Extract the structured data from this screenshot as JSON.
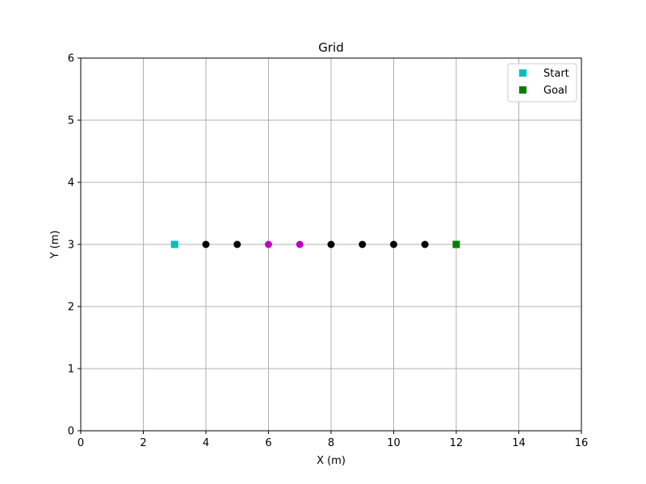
{
  "chart_data": {
    "type": "scatter",
    "title": "Grid",
    "xlabel": "X (m)",
    "ylabel": "Y (m)",
    "xlim": [
      0,
      16
    ],
    "ylim": [
      0,
      6
    ],
    "xticks": [
      0,
      2,
      4,
      6,
      8,
      10,
      12,
      14,
      16
    ],
    "yticks": [
      0,
      1,
      2,
      3,
      4,
      5,
      6
    ],
    "xtick_labels": [
      "0",
      "2",
      "4",
      "6",
      "8",
      "10",
      "12",
      "14",
      "16"
    ],
    "ytick_labels": [
      "0",
      "1",
      "2",
      "3",
      "4",
      "5",
      "6"
    ],
    "grid": true,
    "legend_position": "top-right",
    "series": [
      {
        "name": "Start",
        "marker": "square",
        "color": "#00bfbf",
        "points": [
          [
            3,
            3
          ]
        ],
        "legend": true
      },
      {
        "name": "Goal",
        "marker": "square",
        "color": "#008000",
        "points": [
          [
            12,
            3
          ]
        ],
        "legend": true
      },
      {
        "marker": "circle",
        "color": "#000000",
        "points": [
          [
            4,
            3
          ],
          [
            5,
            3
          ],
          [
            8,
            3
          ],
          [
            9,
            3
          ],
          [
            10,
            3
          ],
          [
            11,
            3
          ]
        ],
        "legend": false
      },
      {
        "marker": "circle",
        "color": "#bf00bf",
        "points": [
          [
            6,
            3
          ],
          [
            7,
            3
          ]
        ],
        "legend": false
      }
    ]
  }
}
